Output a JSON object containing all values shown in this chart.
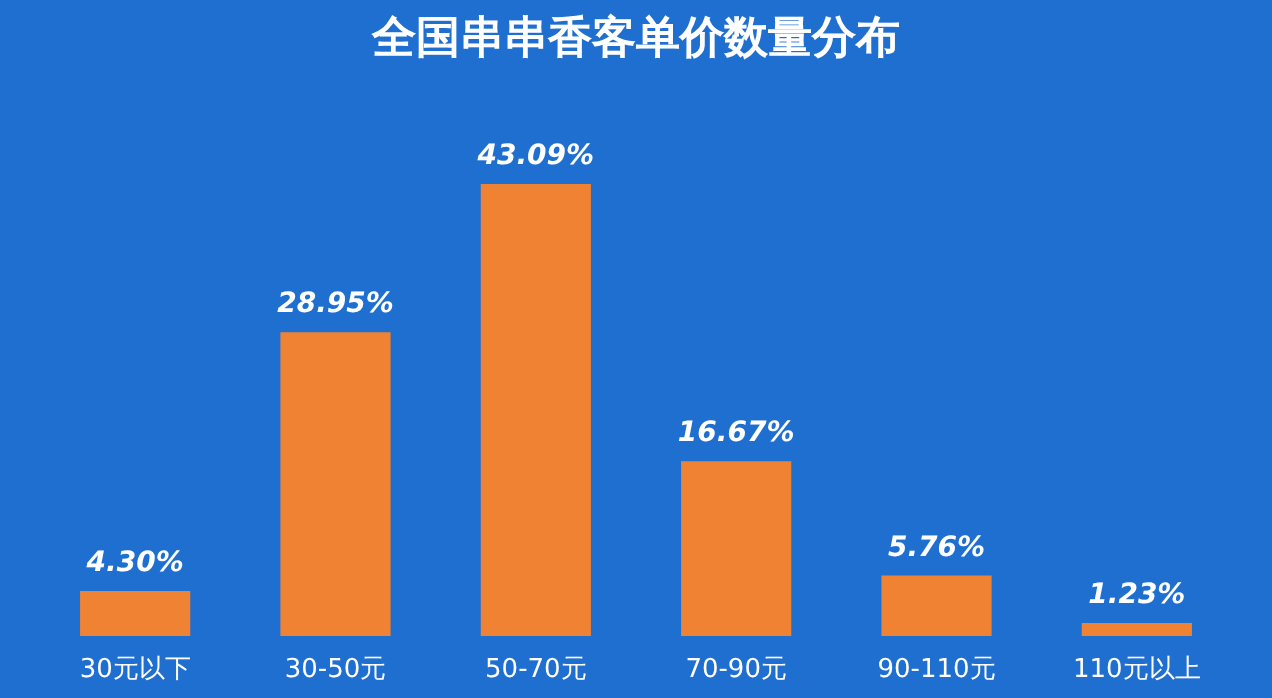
{
  "chart_data": {
    "type": "bar",
    "title": "全国串串香客单价数量分布",
    "categories": [
      "30元以下",
      "30-50元",
      "50-70元",
      "70-90元",
      "90-110元",
      "110元以上"
    ],
    "values": [
      4.3,
      28.95,
      43.09,
      16.67,
      5.76,
      1.23
    ],
    "value_labels": [
      "4.30%",
      "28.95%",
      "43.09%",
      "16.67%",
      "5.76%",
      "1.23%"
    ],
    "color": "#f08234",
    "grid": false,
    "tick_labels": "x"
  }
}
